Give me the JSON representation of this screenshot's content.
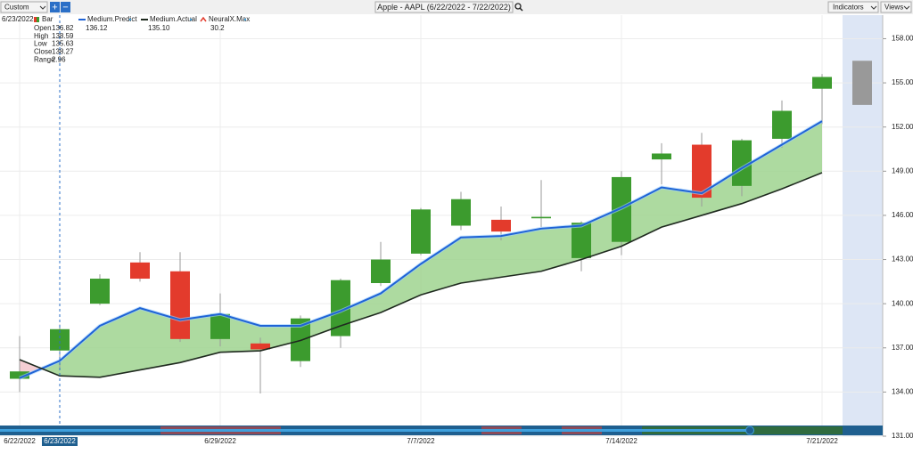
{
  "toolbar": {
    "preset": "Custom",
    "zoom_in": "+",
    "zoom_out": "−",
    "title": "Apple - AAPL (6/22/2022 - 7/22/2022)",
    "indicators": "Indicators",
    "views": "Views"
  },
  "chart_data": {
    "type": "candlestick",
    "categories": [
      "6/22/2022",
      "6/23/2022",
      null,
      null,
      null,
      "6/29/2022",
      null,
      null,
      null,
      null,
      "7/7/2022",
      null,
      null,
      null,
      null,
      "7/14/2022",
      null,
      null,
      null,
      null,
      "7/21/2022",
      null
    ],
    "highlight_category": 1,
    "bar_name": "Bar",
    "open": [
      134.9,
      136.82,
      140.0,
      142.8,
      142.2,
      137.6,
      137.3,
      136.1,
      137.8,
      141.4,
      143.4,
      145.3,
      145.7,
      145.8,
      143.1,
      144.2,
      149.8,
      150.8,
      148.0,
      151.2,
      154.6,
      null
    ],
    "high": [
      137.8,
      138.59,
      142.0,
      143.5,
      143.5,
      140.7,
      137.7,
      139.2,
      141.7,
      144.2,
      146.5,
      147.6,
      146.6,
      148.4,
      145.6,
      149.0,
      150.9,
      151.6,
      151.2,
      153.8,
      155.6,
      null
    ],
    "low": [
      134.0,
      135.63,
      139.9,
      141.5,
      137.4,
      137.1,
      133.9,
      135.7,
      137.0,
      141.2,
      143.3,
      145.0,
      144.3,
      145.2,
      142.2,
      143.3,
      148.1,
      146.6,
      147.3,
      150.6,
      152.2,
      null
    ],
    "close": [
      135.4,
      138.27,
      141.7,
      141.7,
      137.6,
      139.3,
      136.9,
      139.0,
      141.6,
      143.0,
      146.4,
      147.1,
      144.9,
      145.9,
      145.5,
      148.6,
      150.2,
      147.2,
      151.1,
      153.1,
      155.4,
      null
    ],
    "up_color": "#3c9b2e",
    "down_color": "#e33b2c",
    "forecast_low": 153.5,
    "forecast_high": 156.5,
    "forecast_color": "#999999",
    "series": [
      {
        "name": "Medium.Predict",
        "color": "#1f63d6",
        "readout": "136.12",
        "values": [
          134.95,
          136.12,
          138.5,
          139.7,
          138.9,
          139.3,
          138.5,
          138.5,
          139.5,
          140.7,
          142.7,
          144.5,
          144.6,
          145.1,
          145.3,
          146.5,
          147.9,
          147.5,
          149.2,
          150.8,
          152.4,
          null
        ]
      },
      {
        "name": "Medium.Actual",
        "color": "#1f2a1f",
        "readout": "135.10",
        "values": [
          136.2,
          135.1,
          135.0,
          135.5,
          136.0,
          136.7,
          136.8,
          137.5,
          138.5,
          139.4,
          140.6,
          141.4,
          141.8,
          142.2,
          143.0,
          143.9,
          145.2,
          146.0,
          146.8,
          147.8,
          148.9,
          null
        ]
      }
    ],
    "indicator": {
      "name": "NeuralX.Max",
      "readout": "30.2"
    },
    "fill_above": "#9fd48f",
    "fill_below": "#f2c6cb",
    "hover": {
      "date": "6/23/2022",
      "fields": [
        [
          "Open",
          "136.82"
        ],
        [
          "High",
          "138.59"
        ],
        [
          "Low",
          "135.63"
        ],
        [
          "Close",
          "138.27"
        ],
        [
          "Range",
          "2.96"
        ]
      ]
    },
    "ylim": [
      131,
      159.6
    ],
    "yticks": [
      {
        "value": 158,
        "label": "158.00"
      },
      {
        "value": 155,
        "label": "155.00"
      },
      {
        "value": 152,
        "label": "152.00"
      },
      {
        "value": 149,
        "label": "149.00"
      },
      {
        "value": 146,
        "label": "146.00"
      },
      {
        "value": 143,
        "label": "143.00"
      },
      {
        "value": 140,
        "label": "140.00"
      },
      {
        "value": 137,
        "label": "137.00"
      },
      {
        "value": 134,
        "label": "134.00"
      },
      {
        "value": 131,
        "label": "131.00"
      }
    ],
    "grid": true
  }
}
